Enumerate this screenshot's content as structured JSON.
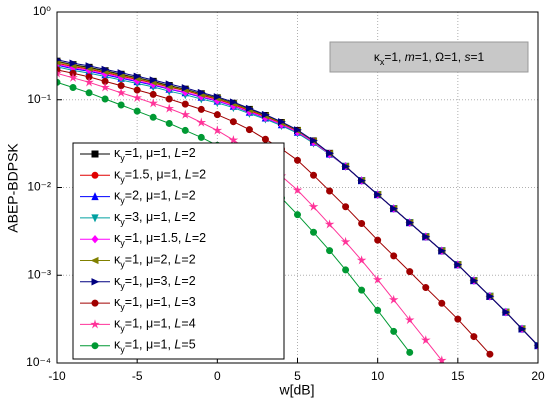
{
  "chart_data": {
    "type": "line",
    "xlabel": "w[dB]",
    "ylabel": "ABEP-BDPSK",
    "annotation": "κx=1, m=1, Ω=1, s=1",
    "x": [
      -10,
      -9,
      -8,
      -7,
      -6,
      -5,
      -4,
      -3,
      -2,
      -1,
      0,
      1,
      2,
      3,
      4,
      5,
      6,
      7,
      8,
      9,
      10,
      11,
      12,
      13,
      14,
      15,
      16,
      17,
      18,
      19,
      20
    ],
    "xlim": [
      -10,
      20
    ],
    "xticks": [
      -10,
      -5,
      0,
      5,
      10,
      15,
      20
    ],
    "ylim": [
      0.0001,
      1
    ],
    "log_y": true,
    "grid": true,
    "yticks": [
      {
        "value": 0.0001,
        "label": "10⁻⁴"
      },
      {
        "value": 0.001,
        "label": "10⁻³"
      },
      {
        "value": 0.01,
        "label": "10⁻²"
      },
      {
        "value": 0.1,
        "label": "10⁻¹"
      },
      {
        "value": 1,
        "label": "10⁰"
      }
    ],
    "legend": "lower left",
    "series": [
      {
        "name": "κy=1, μ=1, L=2",
        "color": "#000000",
        "marker": "square",
        "values": [
          0.275,
          0.251,
          0.234,
          0.214,
          0.195,
          0.178,
          0.162,
          0.145,
          0.132,
          0.117,
          0.105,
          0.0912,
          0.0776,
          0.0661,
          0.055,
          0.0447,
          0.0339,
          0.0245,
          0.0174,
          0.012,
          0.0083,
          0.00575,
          0.00398,
          0.00275,
          0.0019,
          0.00132,
          0.00087,
          0.000575,
          0.00038,
          0.000245,
          0.000158
        ]
      },
      {
        "name": "κy=1.5, μ=1, L=2",
        "color": "#e00000",
        "marker": "circle",
        "values": [
          0.261,
          0.239,
          0.223,
          0.204,
          0.186,
          0.17,
          0.155,
          0.139,
          0.127,
          0.113,
          0.101,
          0.0882,
          0.0753,
          0.0645,
          0.0539,
          0.044,
          0.0335,
          0.0243,
          0.0174,
          0.012,
          0.0083,
          0.00575,
          0.00398,
          0.00275,
          0.0019,
          0.00132,
          0.00087,
          0.000575,
          0.00038,
          0.000245,
          0.000158
        ]
      },
      {
        "name": "κy=2, μ=1, L=2",
        "color": "#0000ff",
        "marker": "triangle-up",
        "values": [
          0.248,
          0.226,
          0.211,
          0.193,
          0.176,
          0.161,
          0.147,
          0.132,
          0.12,
          0.107,
          0.0966,
          0.0844,
          0.0722,
          0.062,
          0.052,
          0.0427,
          0.0327,
          0.024,
          0.0174,
          0.012,
          0.0083,
          0.00575,
          0.00398,
          0.00275,
          0.0019,
          0.00132,
          0.00087,
          0.000575,
          0.00038,
          0.000245,
          0.000158
        ]
      },
      {
        "name": "κy=3, μ=1, L=2",
        "color": "#00a0a0",
        "marker": "triangle-down",
        "values": [
          0.237,
          0.216,
          0.201,
          0.184,
          0.168,
          0.153,
          0.14,
          0.125,
          0.114,
          0.102,
          0.0924,
          0.0812,
          0.0698,
          0.0602,
          0.0506,
          0.0416,
          0.032,
          0.0238,
          0.0174,
          0.012,
          0.0083,
          0.00575,
          0.00398,
          0.00275,
          0.0019,
          0.00132,
          0.00087,
          0.000575,
          0.00038,
          0.000245,
          0.000158
        ]
      },
      {
        "name": "κy=1, μ=1.5, L=2",
        "color": "#ff00ff",
        "marker": "diamond",
        "values": [
          0.253,
          0.231,
          0.216,
          0.197,
          0.18,
          0.164,
          0.15,
          0.134,
          0.122,
          0.109,
          0.0977,
          0.0853,
          0.073,
          0.0625,
          0.0523,
          0.0429,
          0.0328,
          0.024,
          0.0174,
          0.012,
          0.0083,
          0.00575,
          0.00398,
          0.00275,
          0.0019,
          0.00132,
          0.00087,
          0.000575,
          0.00038,
          0.000245,
          0.000158
        ]
      },
      {
        "name": "κy=1, μ=2, L=2",
        "color": "#808000",
        "marker": "triangle-left",
        "values": [
          0.27,
          0.246,
          0.229,
          0.21,
          0.191,
          0.175,
          0.159,
          0.142,
          0.13,
          0.115,
          0.104,
          0.0903,
          0.0769,
          0.0656,
          0.0547,
          0.0445,
          0.0338,
          0.0245,
          0.0174,
          0.012,
          0.0083,
          0.00575,
          0.00398,
          0.00275,
          0.0019,
          0.00132,
          0.00087,
          0.000575,
          0.00038,
          0.000245,
          0.000158
        ]
      },
      {
        "name": "κy=1, μ=3, L=2",
        "color": "#000080",
        "marker": "triangle-right",
        "values": [
          0.286,
          0.261,
          0.243,
          0.222,
          0.203,
          0.185,
          0.168,
          0.151,
          0.137,
          0.121,
          0.108,
          0.094,
          0.0797,
          0.0677,
          0.0561,
          0.0453,
          0.0342,
          0.0246,
          0.0174,
          0.012,
          0.0083,
          0.00575,
          0.00398,
          0.00275,
          0.0019,
          0.00132,
          0.00087,
          0.000575,
          0.00038,
          0.000245,
          0.000158
        ]
      },
      {
        "name": "κy=1, μ=1, L=3",
        "color": "#a00000",
        "marker": "circle",
        "values": [
          0.219,
          0.2,
          0.182,
          0.162,
          0.145,
          0.129,
          0.115,
          0.102,
          0.0891,
          0.0776,
          0.0676,
          0.0562,
          0.0457,
          0.0355,
          0.0275,
          0.0204,
          0.0138,
          0.00912,
          0.00603,
          0.00389,
          0.00251,
          0.00166,
          0.0011,
          0.000724,
          0.000479,
          0.000316,
          0.0002,
          0.000126,
          null,
          null,
          null
        ]
      },
      {
        "name": "κy=1, μ=1, L=4",
        "color": "#ff3399",
        "marker": "star",
        "values": [
          0.2,
          0.178,
          0.158,
          0.138,
          0.12,
          0.105,
          0.0912,
          0.0794,
          0.0676,
          0.055,
          0.0447,
          0.0347,
          0.0263,
          0.0191,
          0.0135,
          0.00933,
          0.00603,
          0.0038,
          0.0024,
          0.00148,
          0.00089,
          0.000525,
          0.000309,
          0.000182,
          0.000107,
          null,
          null,
          null,
          null,
          null,
          null
        ]
      },
      {
        "name": "κy=1, μ=1, L=5",
        "color": "#009933",
        "marker": "circle",
        "values": [
          0.158,
          0.138,
          0.12,
          0.102,
          0.0871,
          0.0741,
          0.0631,
          0.0537,
          0.0447,
          0.0372,
          0.0302,
          0.0224,
          0.0162,
          0.0112,
          0.00759,
          0.0049,
          0.00309,
          0.00191,
          0.00115,
          0.000676,
          0.000398,
          0.000229,
          0.000132,
          null,
          null,
          null,
          null,
          null,
          null,
          null,
          null
        ]
      }
    ]
  }
}
